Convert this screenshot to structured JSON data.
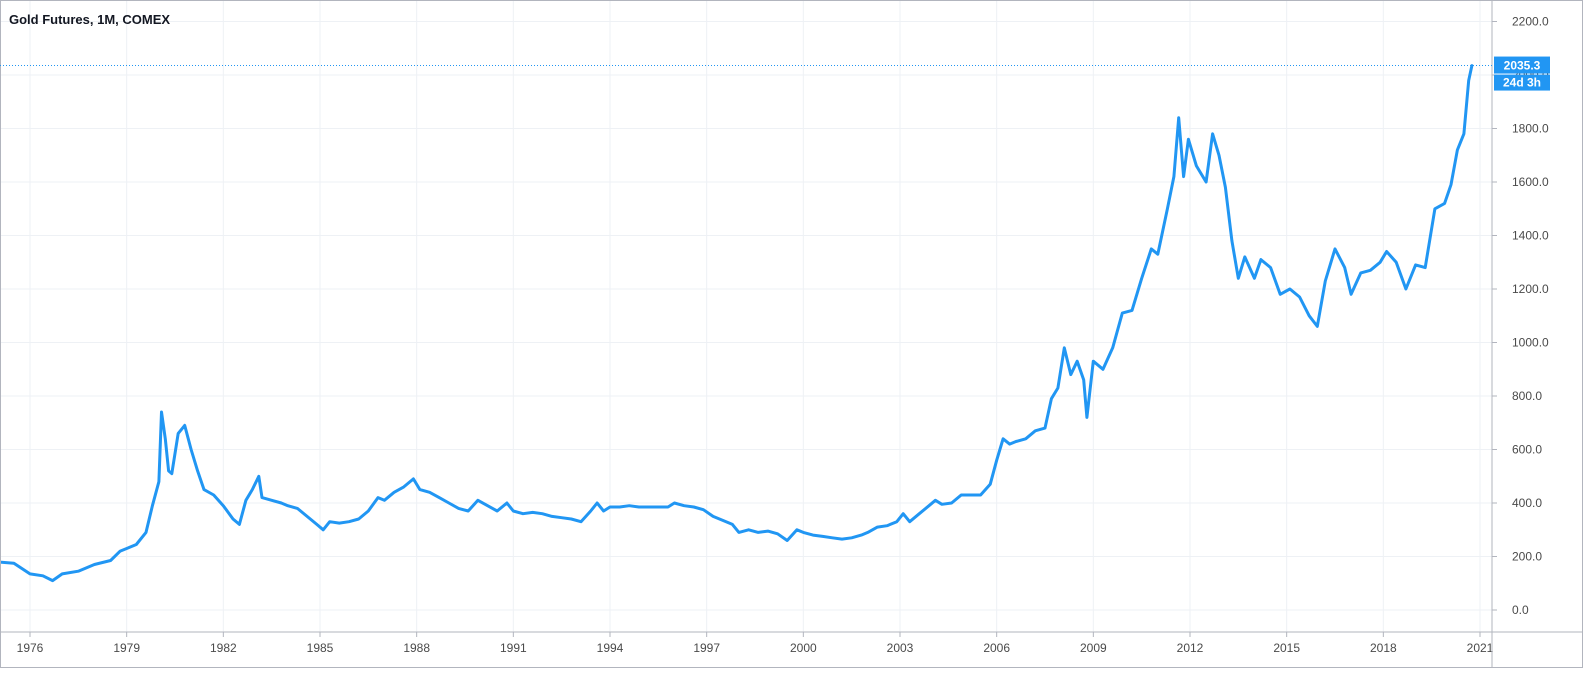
{
  "chart_data": {
    "type": "line",
    "title": "Gold Futures, 1M, COMEX",
    "xlabel": "",
    "ylabel": "",
    "ylim": [
      -50,
      2300
    ],
    "y_ticks": [
      "0.0",
      "200.0",
      "400.0",
      "600.0",
      "800.0",
      "1000.0",
      "1200.0",
      "1400.0",
      "1600.0",
      "1800.0",
      "2000.0",
      "2200.0"
    ],
    "x_ticks": [
      "1976",
      "1979",
      "1982",
      "1985",
      "1988",
      "1991",
      "1994",
      "1997",
      "2000",
      "2003",
      "2006",
      "2009",
      "2012",
      "2015",
      "2018",
      "2021"
    ],
    "grid": true,
    "line_color": "#2196f3",
    "last_price": "2035.3",
    "countdown": "24d 3h",
    "series": [
      {
        "values": [
          [
            1975.0,
            180
          ],
          [
            1975.5,
            175
          ],
          [
            1976.0,
            135
          ],
          [
            1976.4,
            128
          ],
          [
            1976.7,
            110
          ],
          [
            1977.0,
            135
          ],
          [
            1977.5,
            145
          ],
          [
            1978.0,
            170
          ],
          [
            1978.5,
            185
          ],
          [
            1978.8,
            220
          ],
          [
            1979.0,
            230
          ],
          [
            1979.3,
            245
          ],
          [
            1979.6,
            290
          ],
          [
            1979.8,
            390
          ],
          [
            1980.0,
            480
          ],
          [
            1980.08,
            740
          ],
          [
            1980.2,
            640
          ],
          [
            1980.3,
            520
          ],
          [
            1980.4,
            510
          ],
          [
            1980.6,
            660
          ],
          [
            1980.8,
            690
          ],
          [
            1981.0,
            600
          ],
          [
            1981.2,
            520
          ],
          [
            1981.4,
            450
          ],
          [
            1981.7,
            430
          ],
          [
            1982.0,
            390
          ],
          [
            1982.3,
            340
          ],
          [
            1982.5,
            320
          ],
          [
            1982.7,
            410
          ],
          [
            1982.9,
            450
          ],
          [
            1983.1,
            500
          ],
          [
            1983.2,
            420
          ],
          [
            1983.5,
            410
          ],
          [
            1983.8,
            400
          ],
          [
            1984.0,
            390
          ],
          [
            1984.3,
            380
          ],
          [
            1984.6,
            350
          ],
          [
            1984.9,
            320
          ],
          [
            1985.1,
            300
          ],
          [
            1985.3,
            330
          ],
          [
            1985.6,
            325
          ],
          [
            1985.9,
            330
          ],
          [
            1986.2,
            340
          ],
          [
            1986.5,
            370
          ],
          [
            1986.8,
            420
          ],
          [
            1987.0,
            410
          ],
          [
            1987.3,
            440
          ],
          [
            1987.6,
            460
          ],
          [
            1987.9,
            490
          ],
          [
            1988.1,
            450
          ],
          [
            1988.4,
            440
          ],
          [
            1988.7,
            420
          ],
          [
            1989.0,
            400
          ],
          [
            1989.3,
            380
          ],
          [
            1989.6,
            370
          ],
          [
            1989.9,
            410
          ],
          [
            1990.2,
            390
          ],
          [
            1990.5,
            370
          ],
          [
            1990.8,
            400
          ],
          [
            1991.0,
            370
          ],
          [
            1991.3,
            360
          ],
          [
            1991.6,
            365
          ],
          [
            1991.9,
            360
          ],
          [
            1992.2,
            350
          ],
          [
            1992.5,
            345
          ],
          [
            1992.8,
            340
          ],
          [
            1993.1,
            330
          ],
          [
            1993.4,
            370
          ],
          [
            1993.6,
            400
          ],
          [
            1993.8,
            370
          ],
          [
            1994.0,
            385
          ],
          [
            1994.3,
            385
          ],
          [
            1994.6,
            390
          ],
          [
            1994.9,
            385
          ],
          [
            1995.2,
            385
          ],
          [
            1995.5,
            385
          ],
          [
            1995.8,
            385
          ],
          [
            1996.0,
            400
          ],
          [
            1996.3,
            390
          ],
          [
            1996.6,
            385
          ],
          [
            1996.9,
            375
          ],
          [
            1997.2,
            350
          ],
          [
            1997.5,
            335
          ],
          [
            1997.8,
            320
          ],
          [
            1998.0,
            290
          ],
          [
            1998.3,
            300
          ],
          [
            1998.6,
            290
          ],
          [
            1998.9,
            295
          ],
          [
            1999.2,
            285
          ],
          [
            1999.5,
            260
          ],
          [
            1999.8,
            300
          ],
          [
            2000.0,
            290
          ],
          [
            2000.3,
            280
          ],
          [
            2000.6,
            275
          ],
          [
            2000.9,
            270
          ],
          [
            2001.2,
            265
          ],
          [
            2001.5,
            270
          ],
          [
            2001.8,
            280
          ],
          [
            2002.0,
            290
          ],
          [
            2002.3,
            310
          ],
          [
            2002.6,
            315
          ],
          [
            2002.9,
            330
          ],
          [
            2003.1,
            360
          ],
          [
            2003.3,
            330
          ],
          [
            2003.6,
            360
          ],
          [
            2003.9,
            390
          ],
          [
            2004.1,
            410
          ],
          [
            2004.3,
            395
          ],
          [
            2004.6,
            400
          ],
          [
            2004.9,
            430
          ],
          [
            2005.2,
            430
          ],
          [
            2005.5,
            430
          ],
          [
            2005.8,
            470
          ],
          [
            2006.0,
            560
          ],
          [
            2006.2,
            640
          ],
          [
            2006.4,
            620
          ],
          [
            2006.6,
            630
          ],
          [
            2006.9,
            640
          ],
          [
            2007.2,
            670
          ],
          [
            2007.5,
            680
          ],
          [
            2007.7,
            790
          ],
          [
            2007.9,
            830
          ],
          [
            2008.1,
            980
          ],
          [
            2008.3,
            880
          ],
          [
            2008.5,
            930
          ],
          [
            2008.7,
            860
          ],
          [
            2008.8,
            720
          ],
          [
            2009.0,
            930
          ],
          [
            2009.3,
            900
          ],
          [
            2009.6,
            980
          ],
          [
            2009.9,
            1110
          ],
          [
            2010.2,
            1120
          ],
          [
            2010.5,
            1240
          ],
          [
            2010.8,
            1350
          ],
          [
            2011.0,
            1330
          ],
          [
            2011.3,
            1500
          ],
          [
            2011.5,
            1620
          ],
          [
            2011.65,
            1840
          ],
          [
            2011.8,
            1620
          ],
          [
            2011.95,
            1760
          ],
          [
            2012.2,
            1660
          ],
          [
            2012.5,
            1600
          ],
          [
            2012.7,
            1780
          ],
          [
            2012.9,
            1700
          ],
          [
            2013.1,
            1580
          ],
          [
            2013.3,
            1380
          ],
          [
            2013.5,
            1240
          ],
          [
            2013.7,
            1320
          ],
          [
            2014.0,
            1240
          ],
          [
            2014.2,
            1310
          ],
          [
            2014.5,
            1280
          ],
          [
            2014.8,
            1180
          ],
          [
            2015.1,
            1200
          ],
          [
            2015.4,
            1170
          ],
          [
            2015.7,
            1100
          ],
          [
            2015.95,
            1060
          ],
          [
            2016.2,
            1230
          ],
          [
            2016.5,
            1350
          ],
          [
            2016.8,
            1280
          ],
          [
            2017.0,
            1180
          ],
          [
            2017.3,
            1260
          ],
          [
            2017.6,
            1270
          ],
          [
            2017.9,
            1300
          ],
          [
            2018.1,
            1340
          ],
          [
            2018.4,
            1300
          ],
          [
            2018.7,
            1200
          ],
          [
            2019.0,
            1290
          ],
          [
            2019.3,
            1280
          ],
          [
            2019.6,
            1500
          ],
          [
            2019.9,
            1520
          ],
          [
            2020.1,
            1590
          ],
          [
            2020.3,
            1720
          ],
          [
            2020.5,
            1780
          ],
          [
            2020.65,
            1980
          ],
          [
            2020.75,
            2035.3
          ]
        ]
      }
    ]
  }
}
